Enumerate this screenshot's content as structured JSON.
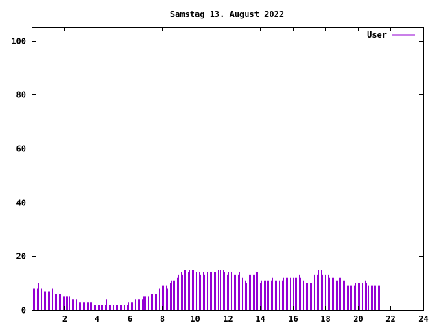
{
  "chart_data": {
    "type": "bar",
    "title": "Samstag 13. August 2022",
    "xlabel": "",
    "ylabel": "",
    "xlim": [
      0,
      24
    ],
    "ylim": [
      0,
      105
    ],
    "x_ticks": [
      "2",
      "4",
      "6",
      "8",
      "10",
      "12",
      "14",
      "16",
      "18",
      "20",
      "22",
      "24"
    ],
    "y_ticks": [
      "0",
      "20",
      "40",
      "60",
      "80",
      "100"
    ],
    "grid": false,
    "legend_position": "top-right",
    "bar_color": "#9400d3",
    "series": [
      {
        "name": "User",
        "x_start": 0.083,
        "x_step": 0.0833,
        "values": [
          8,
          8,
          8,
          8,
          10,
          8,
          8,
          7,
          7,
          7,
          7,
          7,
          7,
          8,
          8,
          8,
          6,
          6,
          6,
          6,
          6,
          6,
          5,
          5,
          5,
          5,
          5,
          5,
          4,
          4,
          4,
          4,
          4,
          4,
          3,
          3,
          3,
          3,
          3,
          3,
          3,
          3,
          3,
          3,
          2,
          2,
          2,
          2,
          2,
          2,
          2,
          2,
          2,
          2,
          4,
          3,
          2,
          2,
          2,
          2,
          2,
          2,
          2,
          2,
          2,
          2,
          2,
          2,
          2,
          2,
          3,
          3,
          3,
          3,
          3,
          4,
          4,
          4,
          4,
          4,
          4,
          5,
          5,
          5,
          5,
          5,
          6,
          6,
          6,
          6,
          6,
          6,
          5,
          8,
          9,
          9,
          9,
          10,
          9,
          8,
          9,
          10,
          11,
          11,
          11,
          11,
          12,
          13,
          13,
          14,
          13,
          15,
          15,
          15,
          14,
          15,
          14,
          15,
          15,
          15,
          14,
          13,
          14,
          13,
          13,
          14,
          13,
          13,
          14,
          13,
          14,
          14,
          14,
          14,
          14,
          15,
          15,
          15,
          15,
          15,
          15,
          14,
          14,
          13,
          14,
          14,
          14,
          14,
          13,
          13,
          13,
          13,
          14,
          13,
          12,
          11,
          11,
          10,
          11,
          13,
          13,
          13,
          13,
          13,
          14,
          14,
          13,
          10,
          11,
          11,
          11,
          11,
          11,
          11,
          11,
          11,
          12,
          11,
          11,
          11,
          10,
          11,
          11,
          11,
          12,
          13,
          12,
          12,
          12,
          12,
          13,
          12,
          12,
          12,
          12,
          13,
          13,
          12,
          12,
          11,
          10,
          10,
          10,
          10,
          10,
          10,
          10,
          13,
          13,
          13,
          15,
          14,
          15,
          13,
          13,
          13,
          13,
          13,
          12,
          13,
          12,
          12,
          13,
          11,
          11,
          12,
          12,
          12,
          11,
          11,
          11,
          9,
          9,
          9,
          9,
          9,
          9,
          10,
          10,
          10,
          10,
          10,
          10,
          12,
          11,
          10,
          9,
          9,
          9,
          9,
          9,
          9,
          9,
          10,
          9,
          9,
          9
        ]
      }
    ]
  }
}
